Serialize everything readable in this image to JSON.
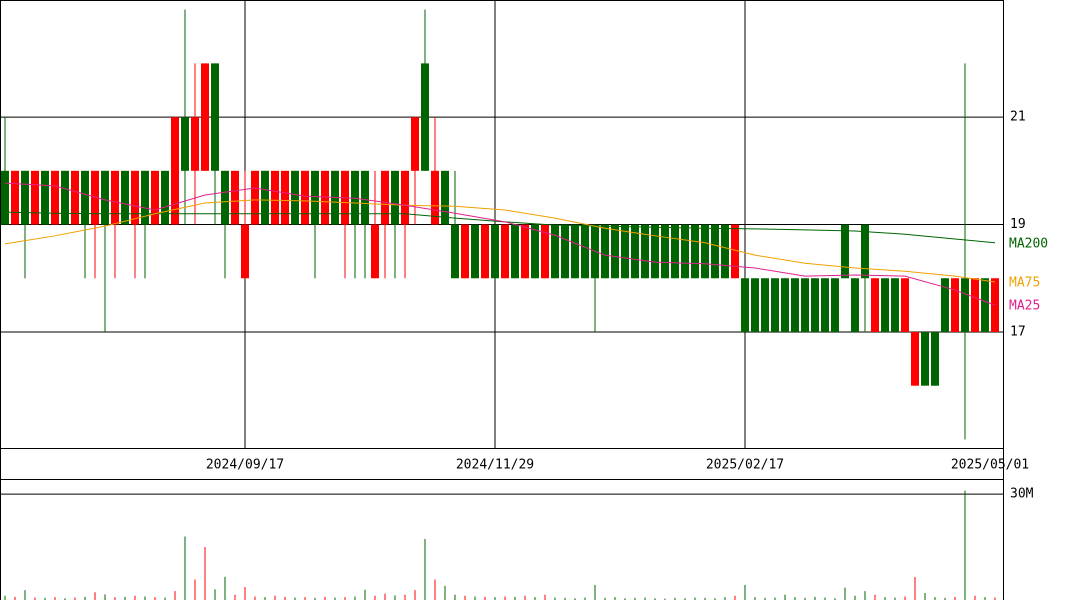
{
  "chart_data": {
    "type": "candlestick",
    "categories": [
      null,
      null,
      null,
      null,
      null,
      null,
      null,
      null,
      null,
      null,
      null,
      null,
      null,
      null,
      null,
      null,
      null,
      null,
      null,
      null,
      null,
      null,
      null,
      null,
      "2024/09/17",
      null,
      null,
      null,
      null,
      null,
      null,
      null,
      null,
      null,
      null,
      null,
      null,
      null,
      null,
      null,
      null,
      null,
      null,
      null,
      null,
      null,
      null,
      null,
      null,
      "2024/11/29",
      null,
      null,
      null,
      null,
      null,
      null,
      null,
      null,
      null,
      null,
      null,
      null,
      null,
      null,
      null,
      null,
      null,
      null,
      null,
      null,
      null,
      null,
      null,
      null,
      "2025/02/17",
      null,
      null,
      null,
      null,
      null,
      null,
      null,
      null,
      null,
      null,
      null,
      null,
      null,
      null,
      null,
      null,
      null,
      null,
      null,
      null,
      null,
      null,
      null,
      null,
      "2025/05/01"
    ],
    "open": [
      20,
      19,
      20,
      19,
      20,
      19,
      20,
      19,
      20,
      19,
      20,
      19,
      20,
      19,
      20,
      19,
      20,
      19,
      21,
      20,
      20,
      22,
      20,
      19,
      18,
      19,
      20,
      19,
      19,
      20,
      19,
      20,
      19,
      20,
      19,
      20,
      20,
      18,
      19,
      20,
      19,
      20,
      22,
      19,
      20,
      19,
      18,
      19,
      18,
      19,
      18,
      19,
      18,
      19,
      18,
      19,
      19,
      19,
      19,
      19,
      19,
      19,
      19,
      19,
      19,
      19,
      19,
      19,
      19,
      19,
      19,
      19,
      19,
      18,
      18,
      18,
      18,
      18,
      18,
      18,
      18,
      18,
      18,
      18,
      19,
      18,
      19,
      17,
      18,
      18,
      17,
      16,
      17,
      17,
      18,
      17,
      18,
      17,
      18,
      17
    ],
    "high": [
      21,
      20,
      20,
      20,
      20,
      20,
      20,
      20,
      20,
      20,
      20,
      20,
      20,
      20,
      20,
      20,
      20,
      21,
      23,
      22,
      22,
      22,
      20,
      20,
      20,
      20,
      20,
      20,
      20,
      20,
      20,
      20,
      20,
      20,
      20,
      20,
      20,
      20,
      20,
      20,
      20,
      21,
      23,
      21,
      20,
      20,
      19,
      19,
      19,
      19,
      19,
      19,
      19,
      19,
      19,
      19,
      19,
      19,
      19,
      19,
      19,
      19,
      19,
      19,
      19,
      19,
      19,
      19,
      19,
      19,
      19,
      19,
      19,
      19,
      18,
      18,
      18,
      18,
      18,
      18,
      18,
      18,
      18,
      18,
      19,
      18,
      19,
      18,
      18,
      18,
      18,
      17,
      17,
      17,
      18,
      18,
      22,
      18,
      18,
      18
    ],
    "low": [
      19,
      19,
      18,
      19,
      19,
      19,
      19,
      19,
      18,
      18,
      17,
      18,
      19,
      18,
      18,
      19,
      19,
      19,
      19,
      19,
      20,
      19,
      18,
      19,
      18,
      19,
      19,
      19,
      19,
      19,
      19,
      18,
      19,
      19,
      18,
      18,
      18,
      18,
      18,
      18,
      18,
      19,
      20,
      19,
      19,
      18,
      18,
      18,
      18,
      18,
      18,
      18,
      18,
      18,
      18,
      18,
      18,
      18,
      18,
      17,
      18,
      18,
      18,
      18,
      18,
      18,
      18,
      18,
      18,
      18,
      18,
      18,
      18,
      18,
      17,
      17,
      17,
      17,
      17,
      17,
      17,
      17,
      17,
      17,
      18,
      17,
      17,
      17,
      17,
      17,
      17,
      16,
      16,
      16,
      17,
      17,
      15,
      17,
      17,
      17
    ],
    "close": [
      19,
      20,
      19,
      20,
      19,
      20,
      19,
      20,
      19,
      20,
      19,
      20,
      19,
      20,
      19,
      20,
      19,
      21,
      20,
      21,
      22,
      20,
      19,
      20,
      19,
      20,
      19,
      20,
      20,
      19,
      20,
      19,
      20,
      19,
      20,
      19,
      19,
      19,
      20,
      19,
      20,
      21,
      20,
      20,
      19,
      18,
      19,
      18,
      19,
      18,
      19,
      18,
      19,
      18,
      19,
      18,
      18,
      18,
      18,
      18,
      18,
      18,
      18,
      18,
      18,
      18,
      18,
      18,
      18,
      18,
      18,
      18,
      18,
      19,
      17,
      17,
      17,
      17,
      17,
      17,
      17,
      17,
      17,
      17,
      18,
      17,
      18,
      18,
      17,
      17,
      18,
      17,
      16,
      16,
      17,
      18,
      17,
      18,
      17,
      18
    ],
    "up_color": "#ff0000",
    "down_color": "#006400",
    "ylim": [
      14.84,
      23.18
    ],
    "yticks": [
      17,
      19,
      21
    ],
    "grid": true,
    "moving_averages": {
      "x": [
        0,
        5,
        10,
        15,
        20,
        25,
        30,
        35,
        40,
        45,
        50,
        55,
        60,
        65,
        70,
        75,
        80,
        85,
        90,
        95,
        99
      ],
      "series": [
        {
          "name": "MA200",
          "color": "#006400",
          "values": [
            19.23,
            19.21,
            19.2,
            19.2,
            19.2,
            19.2,
            19.2,
            19.2,
            19.2,
            19.12,
            19.05,
            18.99,
            18.97,
            18.95,
            18.93,
            18.92,
            18.9,
            18.88,
            18.82,
            18.73,
            18.66
          ]
        },
        {
          "name": "MA75",
          "color": "#f0a000",
          "values": [
            18.64,
            18.79,
            18.97,
            19.2,
            19.4,
            19.46,
            19.44,
            19.4,
            19.36,
            19.34,
            19.27,
            19.12,
            18.93,
            18.79,
            18.66,
            18.43,
            18.28,
            18.19,
            18.13,
            18.04,
            17.93
          ]
        },
        {
          "name": "MA25",
          "color": "#e0208c",
          "values": [
            19.77,
            19.72,
            19.46,
            19.27,
            19.55,
            19.68,
            19.53,
            19.49,
            19.36,
            19.21,
            19.05,
            18.8,
            18.43,
            18.3,
            18.27,
            18.19,
            18.04,
            18.06,
            18.04,
            17.78,
            17.5
          ]
        }
      ]
    },
    "volume": {
      "values": [
        1200000,
        900000,
        2800000,
        700000,
        600000,
        800000,
        500000,
        700000,
        900000,
        2200000,
        1600000,
        800000,
        900000,
        1200000,
        1000000,
        800000,
        700000,
        2500000,
        18000000,
        5800000,
        15000000,
        3000000,
        6600000,
        1500000,
        3700000,
        1000000,
        800000,
        1200000,
        900000,
        700000,
        800000,
        600000,
        900000,
        700000,
        800000,
        1000000,
        2900000,
        1200000,
        1800000,
        1300000,
        1500000,
        2800000,
        17300000,
        5800000,
        4000000,
        1500000,
        1200000,
        1000000,
        900000,
        800000,
        1000000,
        900000,
        1200000,
        800000,
        1500000,
        700000,
        600000,
        500000,
        700000,
        4300000,
        600000,
        800000,
        500000,
        600000,
        700000,
        500000,
        400000,
        600000,
        500000,
        700000,
        600000,
        500000,
        800000,
        1200000,
        4300000,
        800000,
        600000,
        700000,
        1500000,
        800000,
        600000,
        900000,
        700000,
        500000,
        3500000,
        1200000,
        2500000,
        1500000,
        800000,
        700000,
        1000000,
        6500000,
        2000000,
        800000,
        600000,
        900000,
        31000000,
        1200000,
        800000,
        700000
      ],
      "ylim": [
        0,
        34000000
      ],
      "yticks": [
        {
          "value": 30000000,
          "label": "30M"
        }
      ]
    }
  }
}
